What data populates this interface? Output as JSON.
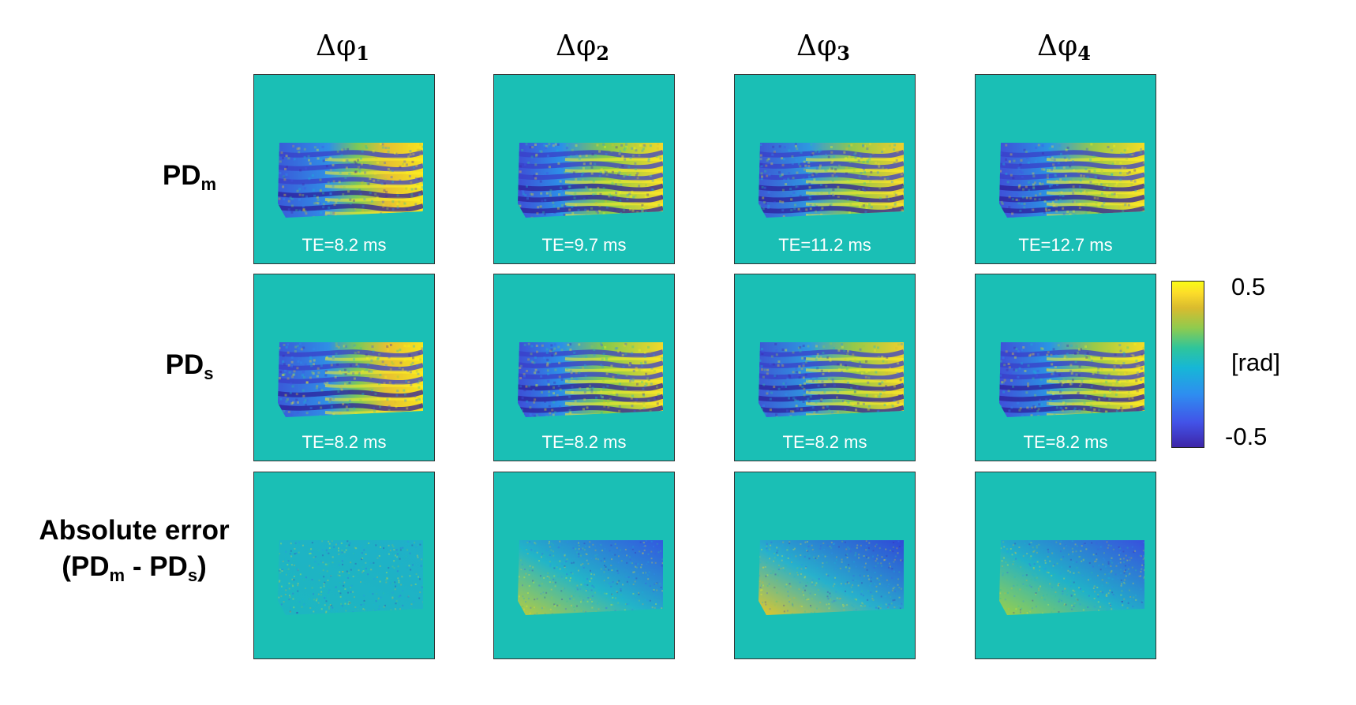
{
  "columns": [
    {
      "symbol": "Δφ",
      "index": "1"
    },
    {
      "symbol": "Δφ",
      "index": "2"
    },
    {
      "symbol": "Δφ",
      "index": "3"
    },
    {
      "symbol": "Δφ",
      "index": "4"
    }
  ],
  "rows": [
    {
      "label_main": "PD",
      "label_sub": "m",
      "te": [
        "TE=8.2 ms",
        "TE=9.7 ms",
        "TE=11.2 ms",
        "TE=12.7 ms"
      ]
    },
    {
      "label_main": "PD",
      "label_sub": "s",
      "te": [
        "TE=8.2 ms",
        "TE=8.2 ms",
        "TE=8.2 ms",
        "TE=8.2 ms"
      ]
    },
    {
      "label_line1": "Absolute error",
      "label_line2_open": "(PD",
      "label_line2_sub1": "m",
      "label_line2_mid": " - PD",
      "label_line2_sub2": "s",
      "label_line2_close": ")"
    }
  ],
  "colorbar": {
    "max": "0.5",
    "unit": "[rad]",
    "min": "-0.5",
    "colormap": [
      "#3e26a8",
      "#4253e8",
      "#2e8ef0",
      "#16b7d6",
      "#2fc59b",
      "#8fcb4e",
      "#d9bb2e",
      "#fcdc2a",
      "#f9fb15"
    ]
  },
  "colors": {
    "background_map": "#1abfb5",
    "te_text": "#ffffff"
  }
}
